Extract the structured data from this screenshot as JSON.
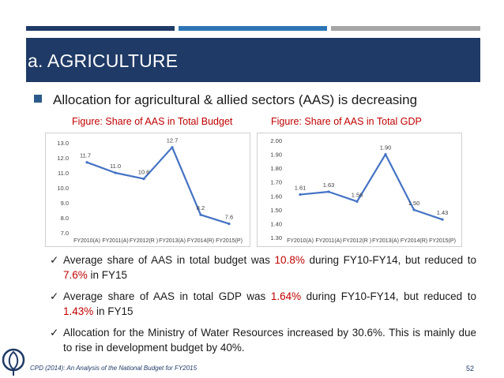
{
  "header": {
    "title": "a. AGRICULTURE"
  },
  "main_bullet": "Allocation for agricultural & allied sectors (AAS) is decreasing",
  "captions": {
    "left": "Figure: Share of AAS in Total Budget",
    "right": "Figure: Share of AAS in Total GDP"
  },
  "chart_data": [
    {
      "type": "line",
      "title": "Figure: Share of AAS in Total Budget",
      "categories": [
        "FY2010(A)",
        "FY2011(A)",
        "FY2012(R )",
        "FY2013(A)",
        "FY2014(R)",
        "FY2015(P)"
      ],
      "values": [
        11.7,
        11.0,
        10.6,
        12.7,
        8.2,
        7.6
      ],
      "data_labels": [
        "11.7",
        "11.0",
        "10.6",
        "12.7",
        "8.2",
        "7.6"
      ],
      "yticks": [
        "13.0",
        "12.0",
        "11.0",
        "10.0",
        "9.0",
        "8.0",
        "7.0"
      ],
      "ylim": [
        7.0,
        13.0
      ],
      "color": "#4472c4"
    },
    {
      "type": "line",
      "title": "Figure: Share of AAS in Total GDP",
      "categories": [
        "FY2010(A)",
        "FY2011(A)",
        "FY2012(R )",
        "FY2013(A)",
        "FY2014(R)",
        "FY2015(P)"
      ],
      "values": [
        1.61,
        1.63,
        1.56,
        1.9,
        1.5,
        1.43
      ],
      "data_labels": [
        "1.61",
        "1.63",
        "1.56",
        "1.90",
        "1.50",
        "1.43"
      ],
      "yticks": [
        "2.00",
        "1.90",
        "1.80",
        "1.70",
        "1.60",
        "1.50",
        "1.40",
        "1.30"
      ],
      "ylim": [
        1.3,
        2.0
      ],
      "color": "#4472c4"
    }
  ],
  "checks": [
    {
      "a": "Average share of AAS in total budget was ",
      "b": "10.8%",
      "c": " during FY10-FY14, but reduced to ",
      "d": "7.6%",
      "e": " in FY15"
    },
    {
      "a": "Average share of AAS in total GDP was ",
      "b": "1.64%",
      "c": " during FY10-FY14, but reduced to ",
      "d": "1.43%",
      "e": " in FY15"
    },
    {
      "a": "Allocation for the Ministry of Water Resources increased by 30.6%. This is mainly due to rise in development budget by 40%."
    }
  ],
  "footer": {
    "source": "CPD (2014): An Analysis of the National Budget for FY2015",
    "page": "52"
  },
  "colors": {
    "header_bg": "#1f3a66",
    "highlight": "#c00000",
    "line": "#4472c4",
    "bar_light": "#a6a6a6"
  }
}
